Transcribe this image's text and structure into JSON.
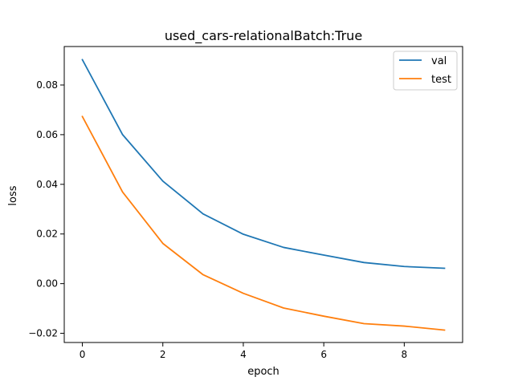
{
  "chart_data": {
    "type": "line",
    "title": "used_cars-relationalBatch:True",
    "xlabel": "epoch",
    "ylabel": "loss",
    "x": [
      0,
      1,
      2,
      3,
      4,
      5,
      6,
      7,
      8,
      9
    ],
    "xlim": [
      -0.45,
      9.45
    ],
    "ylim": [
      -0.0237,
      0.0955
    ],
    "xticks": [
      0,
      2,
      4,
      6,
      8
    ],
    "yticks": [
      -0.02,
      0.0,
      0.02,
      0.04,
      0.06,
      0.08
    ],
    "xtick_labels": [
      "0",
      "2",
      "4",
      "6",
      "8"
    ],
    "ytick_labels": [
      "−0.02",
      "0.00",
      "0.02",
      "0.04",
      "0.06",
      "0.08"
    ],
    "grid": false,
    "legend_position": "top-right",
    "series": [
      {
        "name": "val",
        "color": "#1f77b4",
        "values": [
          0.0902,
          0.06,
          0.0413,
          0.0281,
          0.0199,
          0.0146,
          0.0115,
          0.0085,
          0.0069,
          0.0062
        ]
      },
      {
        "name": "test",
        "color": "#ff7f0e",
        "values": [
          0.0673,
          0.0369,
          0.0162,
          0.0036,
          -0.0039,
          -0.0098,
          -0.0131,
          -0.0161,
          -0.0171,
          -0.0187
        ]
      }
    ]
  }
}
